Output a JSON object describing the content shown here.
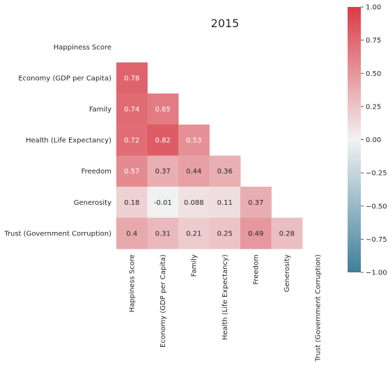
{
  "chart_data": {
    "type": "heatmap",
    "title": "2015",
    "variables": [
      "Happiness Score",
      "Economy (GDP per Capita)",
      "Family",
      "Health (Life Expectancy)",
      "Freedom",
      "Generosity",
      "Trust (Government Corruption)"
    ],
    "lower_triangle": [
      [],
      [
        0.78
      ],
      [
        0.74,
        0.65
      ],
      [
        0.72,
        0.82,
        0.53
      ],
      [
        0.57,
        0.37,
        0.44,
        0.36
      ],
      [
        0.18,
        -0.01,
        0.088,
        0.11,
        0.37
      ],
      [
        0.4,
        0.31,
        0.21,
        0.25,
        0.49,
        0.28
      ]
    ],
    "cell_labels": [
      [],
      [
        "0.78"
      ],
      [
        "0.74",
        "0.65"
      ],
      [
        "0.72",
        "0.82",
        "0.53"
      ],
      [
        "0.57",
        "0.37",
        "0.44",
        "0.36"
      ],
      [
        "0.18",
        "-0.01",
        "0.088",
        "0.11",
        "0.37"
      ],
      [
        "0.4",
        "0.31",
        "0.21",
        "0.25",
        "0.49",
        "0.28"
      ]
    ],
    "colorbar": {
      "range": [
        -1.0,
        1.0
      ],
      "ticks": [
        "1.00",
        "0.75",
        "0.50",
        "0.25",
        "0.00",
        "−0.25",
        "−0.50",
        "−0.75",
        "−1.00"
      ],
      "tick_values": [
        1.0,
        0.75,
        0.5,
        0.25,
        0.0,
        -0.25,
        -0.5,
        -0.75,
        -1.0
      ],
      "color_low": "#3f7f9a",
      "color_mid": "#f2f2f2",
      "color_high": "#da3b46"
    },
    "mask": "upper-triangle-including-diagonal",
    "grid": false
  }
}
